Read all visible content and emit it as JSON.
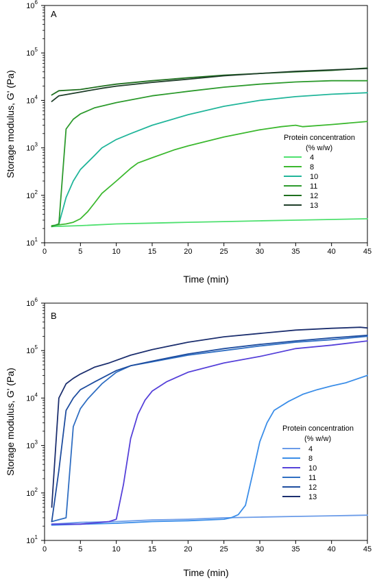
{
  "chart_data": [
    {
      "type": "line",
      "panel": "A",
      "xlabel": "Time (min)",
      "ylabel": "Storage modulus, G' (Pa)",
      "xlim": [
        0,
        45
      ],
      "ylim": [
        10,
        1000000
      ],
      "yscale": "log",
      "xticks": [
        "0",
        "5",
        "10",
        "15",
        "20",
        "25",
        "30",
        "35",
        "40",
        "45"
      ],
      "yticks": [
        {
          "base": "10",
          "exp": "1"
        },
        {
          "base": "10",
          "exp": "2"
        },
        {
          "base": "10",
          "exp": "3"
        },
        {
          "base": "10",
          "exp": "4"
        },
        {
          "base": "10",
          "exp": "5"
        },
        {
          "base": "10",
          "exp": "6"
        }
      ],
      "legend": {
        "title_line1": "Protein concentration",
        "title_line2": "(% w/w)",
        "position": "right-middle"
      },
      "series": [
        {
          "name": "4",
          "color": "#4de06e",
          "points": [
            [
              1,
              22
            ],
            [
              5,
              23
            ],
            [
              10,
              25
            ],
            [
              15,
              26
            ],
            [
              20,
              27
            ],
            [
              25,
              28
            ],
            [
              30,
              29
            ],
            [
              35,
              30
            ],
            [
              40,
              31
            ],
            [
              45,
              32
            ]
          ]
        },
        {
          "name": "8",
          "color": "#3bb82e",
          "points": [
            [
              1,
              23
            ],
            [
              3,
              25
            ],
            [
              4,
              27
            ],
            [
              5,
              32
            ],
            [
              6,
              45
            ],
            [
              7,
              70
            ],
            [
              8,
              110
            ],
            [
              10,
              200
            ],
            [
              12,
              370
            ],
            [
              13,
              480
            ],
            [
              15,
              620
            ],
            [
              18,
              900
            ],
            [
              20,
              1100
            ],
            [
              25,
              1700
            ],
            [
              30,
              2400
            ],
            [
              33,
              2800
            ],
            [
              35,
              3000
            ],
            [
              36,
              2800
            ],
            [
              40,
              3100
            ],
            [
              45,
              3600
            ]
          ]
        },
        {
          "name": "10",
          "color": "#20b59a",
          "points": [
            [
              1,
              22
            ],
            [
              2,
              25
            ],
            [
              3,
              90
            ],
            [
              4,
              200
            ],
            [
              5,
              350
            ],
            [
              7,
              700
            ],
            [
              8,
              1000
            ],
            [
              10,
              1500
            ],
            [
              12,
              2000
            ],
            [
              15,
              3000
            ],
            [
              20,
              5000
            ],
            [
              25,
              7500
            ],
            [
              30,
              10000
            ],
            [
              35,
              12000
            ],
            [
              40,
              13500
            ],
            [
              45,
              14500
            ]
          ]
        },
        {
          "name": "11",
          "color": "#2c9a2c",
          "points": [
            [
              1,
              22
            ],
            [
              2,
              25
            ],
            [
              3,
              2500
            ],
            [
              4,
              4000
            ],
            [
              5,
              5200
            ],
            [
              7,
              7000
            ],
            [
              10,
              9000
            ],
            [
              15,
              12500
            ],
            [
              20,
              15500
            ],
            [
              25,
              19000
            ],
            [
              30,
              22000
            ],
            [
              35,
              24500
            ],
            [
              40,
              26000
            ],
            [
              45,
              26000
            ]
          ]
        },
        {
          "name": "12",
          "color": "#1e6f1e",
          "points": [
            [
              1,
              13000
            ],
            [
              2,
              16000
            ],
            [
              5,
              17000
            ],
            [
              8,
              20000
            ],
            [
              10,
              22000
            ],
            [
              15,
              26000
            ],
            [
              20,
              30000
            ],
            [
              25,
              34000
            ],
            [
              30,
              37000
            ],
            [
              35,
              40000
            ],
            [
              40,
              43000
            ],
            [
              45,
              48000
            ]
          ]
        },
        {
          "name": "13",
          "color": "#1d3d28",
          "points": [
            [
              1,
              9500
            ],
            [
              2,
              12500
            ],
            [
              5,
              15000
            ],
            [
              8,
              18000
            ],
            [
              10,
              20000
            ],
            [
              15,
              24000
            ],
            [
              20,
              28000
            ],
            [
              25,
              33000
            ],
            [
              30,
              37000
            ],
            [
              35,
              41000
            ],
            [
              40,
              44000
            ],
            [
              45,
              47000
            ]
          ]
        }
      ]
    },
    {
      "type": "line",
      "panel": "B",
      "xlabel": "Time (min)",
      "ylabel": "Storage modulus, G' (Pa)",
      "xlim": [
        0,
        45
      ],
      "ylim": [
        10,
        1000000
      ],
      "yscale": "log",
      "xticks": [
        "0",
        "5",
        "10",
        "15",
        "20",
        "25",
        "30",
        "35",
        "40",
        "45"
      ],
      "yticks": [
        {
          "base": "10",
          "exp": "1"
        },
        {
          "base": "10",
          "exp": "2"
        },
        {
          "base": "10",
          "exp": "3"
        },
        {
          "base": "10",
          "exp": "4"
        },
        {
          "base": "10",
          "exp": "5"
        },
        {
          "base": "10",
          "exp": "6"
        }
      ],
      "legend": {
        "title_line1": "Protein concentration",
        "title_line2": "(% w/w)",
        "position": "right-middle"
      },
      "series": [
        {
          "name": "4",
          "color": "#6a9be8",
          "points": [
            [
              1,
              22
            ],
            [
              5,
              24
            ],
            [
              10,
              25
            ],
            [
              15,
              27
            ],
            [
              20,
              28
            ],
            [
              25,
              30
            ],
            [
              30,
              31
            ],
            [
              35,
              32
            ],
            [
              40,
              33
            ],
            [
              45,
              34
            ]
          ]
        },
        {
          "name": "8",
          "color": "#3a8de8",
          "points": [
            [
              1,
              21
            ],
            [
              5,
              22
            ],
            [
              10,
              23
            ],
            [
              15,
              25
            ],
            [
              20,
              26
            ],
            [
              25,
              28
            ],
            [
              26,
              30
            ],
            [
              27,
              35
            ],
            [
              28,
              55
            ],
            [
              29,
              250
            ],
            [
              30,
              1200
            ],
            [
              31,
              3000
            ],
            [
              32,
              5500
            ],
            [
              34,
              8500
            ],
            [
              36,
              12000
            ],
            [
              38,
              15000
            ],
            [
              40,
              18000
            ],
            [
              42,
              21000
            ],
            [
              45,
              30000
            ]
          ]
        },
        {
          "name": "10",
          "color": "#5540d9",
          "points": [
            [
              1,
              22
            ],
            [
              5,
              22
            ],
            [
              9,
              25
            ],
            [
              10,
              28
            ],
            [
              11,
              150
            ],
            [
              12,
              1400
            ],
            [
              13,
              4500
            ],
            [
              14,
              9000
            ],
            [
              15,
              14000
            ],
            [
              17,
              22000
            ],
            [
              20,
              35000
            ],
            [
              25,
              55000
            ],
            [
              30,
              75000
            ],
            [
              35,
              110000
            ],
            [
              40,
              130000
            ],
            [
              45,
              160000
            ]
          ]
        },
        {
          "name": "11",
          "color": "#2f6ec2",
          "points": [
            [
              1,
              25
            ],
            [
              3,
              30
            ],
            [
              4,
              2500
            ],
            [
              5,
              6000
            ],
            [
              6,
              9500
            ],
            [
              8,
              20000
            ],
            [
              10,
              35000
            ],
            [
              12,
              48000
            ],
            [
              15,
              58000
            ],
            [
              20,
              80000
            ],
            [
              25,
              100000
            ],
            [
              30,
              125000
            ],
            [
              35,
              150000
            ],
            [
              40,
              170000
            ],
            [
              45,
              200000
            ]
          ]
        },
        {
          "name": "12",
          "color": "#1d4c9e",
          "points": [
            [
              1,
              25
            ],
            [
              2,
              300
            ],
            [
              3,
              5500
            ],
            [
              4,
              10000
            ],
            [
              5,
              15000
            ],
            [
              7,
              22000
            ],
            [
              10,
              38000
            ],
            [
              12,
              48000
            ],
            [
              15,
              60000
            ],
            [
              20,
              85000
            ],
            [
              25,
              110000
            ],
            [
              30,
              135000
            ],
            [
              35,
              160000
            ],
            [
              40,
              185000
            ],
            [
              45,
              210000
            ]
          ]
        },
        {
          "name": "13",
          "color": "#1b2e6e",
          "points": [
            [
              1,
              50
            ],
            [
              2,
              10000
            ],
            [
              3,
              20000
            ],
            [
              4,
              26000
            ],
            [
              5,
              32000
            ],
            [
              7,
              45000
            ],
            [
              9,
              55000
            ],
            [
              12,
              80000
            ],
            [
              15,
              105000
            ],
            [
              20,
              150000
            ],
            [
              25,
              195000
            ],
            [
              30,
              230000
            ],
            [
              35,
              270000
            ],
            [
              40,
              295000
            ],
            [
              44,
              310000
            ],
            [
              45,
              300000
            ]
          ]
        }
      ]
    }
  ]
}
